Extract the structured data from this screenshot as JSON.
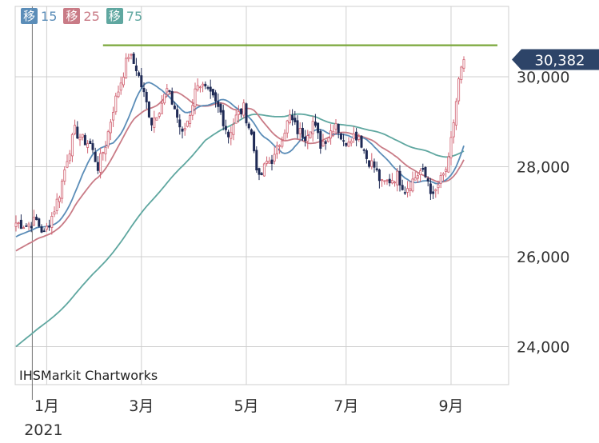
{
  "chart_data": {
    "type": "candlestick",
    "title": "",
    "x_ticks": [
      {
        "label": "1月",
        "sub": "2021",
        "index": 12
      },
      {
        "label": "3月",
        "sub": "",
        "index": 49
      },
      {
        "label": "5月",
        "sub": "",
        "index": 90
      },
      {
        "label": "7月",
        "sub": "",
        "index": 129
      },
      {
        "label": "9月",
        "sub": "",
        "index": 170
      }
    ],
    "y_ticks": [
      24000,
      26000,
      28000,
      30000
    ],
    "y_tick_labels": [
      "24,000",
      "26,000",
      "28,000",
      "30,000"
    ],
    "ylim": [
      22500,
      31200
    ],
    "last_price": 30382,
    "last_price_label": "30,382",
    "resistance_level": 30700,
    "watermark": "IHSMarkit Chartworks",
    "legend": [
      {
        "glyph": "移",
        "period": "15",
        "color": "#5b8db8"
      },
      {
        "glyph": "移",
        "period": "25",
        "color": "#c97b86"
      },
      {
        "glyph": "移",
        "period": "75",
        "color": "#5fa7a0"
      }
    ],
    "colors": {
      "up": "#d06070",
      "down": "#1f2a55",
      "ma15": "#5b8db8",
      "ma25": "#c97b86",
      "ma75": "#5fa7a0",
      "resistance": "#7aa73a",
      "price_tag": "#2d4468",
      "grid": "#cfcfcf"
    },
    "anchors": [
      [
        0,
        26750
      ],
      [
        4,
        26700
      ],
      [
        8,
        26800
      ],
      [
        11,
        26500
      ],
      [
        14,
        26900
      ],
      [
        17,
        27400
      ],
      [
        20,
        28200
      ],
      [
        23,
        28800
      ],
      [
        26,
        28600
      ],
      [
        29,
        28500
      ],
      [
        32,
        28000
      ],
      [
        35,
        28500
      ],
      [
        38,
        29300
      ],
      [
        41,
        29900
      ],
      [
        44,
        30500
      ],
      [
        47,
        30200
      ],
      [
        50,
        29600
      ],
      [
        53,
        29000
      ],
      [
        56,
        29300
      ],
      [
        59,
        29700
      ],
      [
        62,
        29300
      ],
      [
        65,
        28700
      ],
      [
        68,
        29200
      ],
      [
        71,
        29900
      ],
      [
        74,
        29700
      ],
      [
        77,
        29500
      ],
      [
        80,
        29200
      ],
      [
        83,
        28700
      ],
      [
        86,
        29100
      ],
      [
        89,
        29300
      ],
      [
        92,
        28700
      ],
      [
        95,
        27700
      ],
      [
        98,
        28100
      ],
      [
        101,
        28200
      ],
      [
        104,
        28700
      ],
      [
        107,
        29100
      ],
      [
        110,
        28800
      ],
      [
        113,
        28700
      ],
      [
        116,
        29000
      ],
      [
        119,
        28500
      ],
      [
        122,
        28700
      ],
      [
        125,
        29000
      ],
      [
        128,
        28500
      ],
      [
        131,
        28700
      ],
      [
        134,
        28700
      ],
      [
        137,
        28200
      ],
      [
        140,
        28000
      ],
      [
        143,
        27600
      ],
      [
        146,
        27700
      ],
      [
        149,
        27800
      ],
      [
        152,
        27500
      ],
      [
        155,
        27700
      ],
      [
        158,
        27900
      ],
      [
        161,
        27700
      ],
      [
        163,
        27300
      ],
      [
        165,
        27600
      ],
      [
        167,
        27800
      ],
      [
        169,
        28100
      ],
      [
        171,
        29000
      ],
      [
        173,
        29900
      ],
      [
        175,
        30380
      ]
    ]
  }
}
